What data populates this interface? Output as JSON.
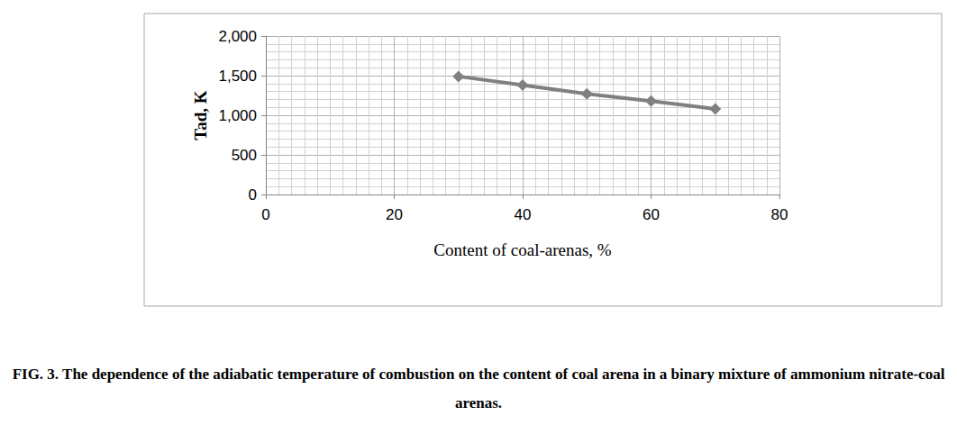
{
  "chart_data": {
    "type": "line",
    "title": "FIG. 3. The dependence of the adiabatic temperature of combustion on the content of coal arena in a binary mixture of ammonium nitrate-coal arenas.",
    "x_label": "Content of coal-arenas, %",
    "y_label": "Tad, K",
    "x": [
      30,
      40,
      50,
      60,
      70
    ],
    "values": [
      1490,
      1380,
      1270,
      1180,
      1080
    ],
    "color": "#808080",
    "marker": "diamond",
    "xlim": [
      0,
      80
    ],
    "xticks": [
      0,
      20,
      40,
      60,
      80
    ],
    "ylim": [
      0,
      2000
    ],
    "yticks": [
      0,
      500,
      1000,
      1500,
      2000
    ],
    "grid": true
  }
}
